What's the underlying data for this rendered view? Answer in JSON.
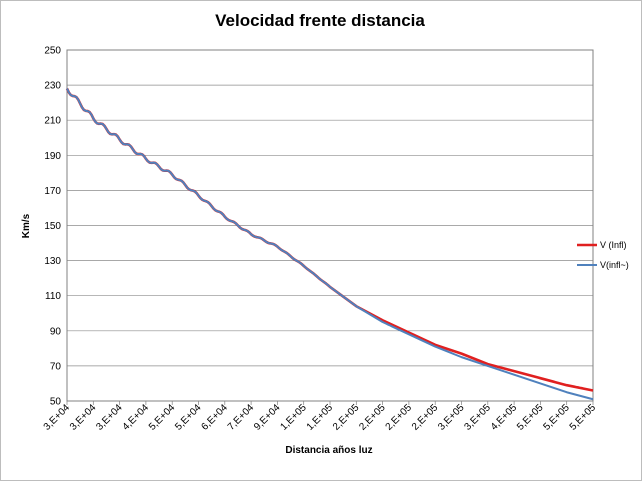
{
  "chart_data": {
    "type": "line",
    "title": "Velocidad frente distancia",
    "xlabel": "Distancia  años luz",
    "ylabel": "Km/s",
    "ylim": [
      50,
      250
    ],
    "yticks": [
      50,
      70,
      90,
      110,
      130,
      150,
      170,
      190,
      210,
      230,
      250
    ],
    "xtick_labels": [
      "3,E+04",
      "3,E+04",
      "3,E+04",
      "4,E+04",
      "5,E+04",
      "5,E+04",
      "6,E+04",
      "7,E+04",
      "9,E+04",
      "1,E+05",
      "1,E+05",
      "2,E+05",
      "2,E+05",
      "2,E+05",
      "2,E+05",
      "3,E+05",
      "3,E+05",
      "4,E+05",
      "5,E+05",
      "5,E+05",
      "5,E+05"
    ],
    "grid": "horizontal",
    "legend_position": "right",
    "x": [
      0,
      1,
      2,
      3,
      4,
      5,
      6,
      7,
      8,
      9,
      10,
      11,
      12,
      13,
      14,
      15,
      16,
      17,
      18,
      19,
      20
    ],
    "series": [
      {
        "name": "V  (Infl)",
        "color": "#e02020",
        "values": [
          228,
          211,
          199,
          188,
          179,
          167,
          155,
          145,
          138,
          127,
          115,
          104,
          96,
          89,
          82,
          77,
          71,
          67,
          63,
          59,
          56
        ]
      },
      {
        "name": "V(infl~)",
        "color": "#4f81bd",
        "values": [
          228,
          211,
          199,
          188,
          179,
          167,
          155,
          145,
          138,
          127,
          115,
          104,
          95,
          88,
          81,
          75,
          70,
          65,
          60,
          55,
          51
        ]
      }
    ]
  }
}
